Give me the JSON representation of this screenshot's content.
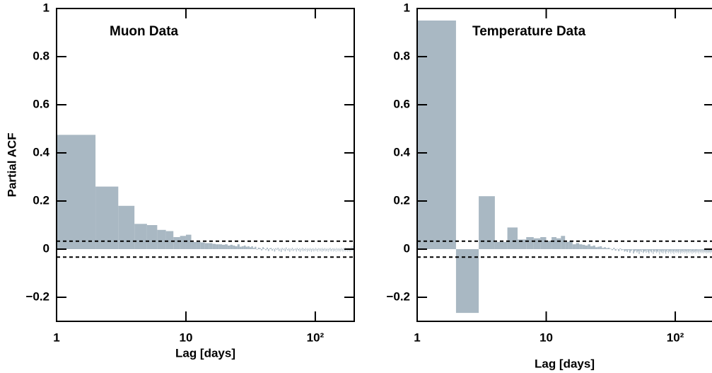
{
  "chart_data": [
    {
      "type": "histogram",
      "title": "Muon Data",
      "x_label": "Lag [days]",
      "y_label": "Partial ACF",
      "x_scale": "log",
      "color": "#a9b8c3",
      "xlim": [
        1,
        200
      ],
      "xticks": [
        1,
        10,
        {
          "value": 100,
          "label": "10²"
        }
      ],
      "ylim": [
        -0.3,
        1
      ],
      "yticks": [
        {
          "value": -0.2,
          "label": "−0.2"
        },
        0,
        0.2,
        0.4,
        0.6,
        0.8,
        1
      ],
      "confidence_bounds": [
        0.033,
        -0.033
      ],
      "bins": [
        1,
        2,
        3,
        4,
        5,
        6,
        7,
        8,
        9,
        10,
        11,
        12,
        13,
        14,
        15,
        16,
        17,
        18,
        19,
        20,
        21,
        22,
        23,
        24,
        25,
        26,
        27,
        28,
        29,
        30,
        31,
        32,
        33,
        34,
        35,
        36,
        37,
        38,
        39,
        40,
        41,
        42,
        43,
        44,
        45,
        46,
        47,
        48,
        49,
        50,
        51,
        52,
        53,
        54,
        55,
        56,
        57,
        58,
        59,
        60,
        61,
        62,
        63,
        64,
        65,
        66,
        67,
        68,
        69,
        70,
        71,
        72,
        73,
        74,
        75,
        76,
        77,
        78,
        79,
        80,
        81,
        82,
        83,
        84,
        85,
        86,
        87,
        88,
        89,
        90,
        91,
        92,
        93,
        94,
        95,
        96,
        97,
        98,
        99,
        100,
        101,
        102,
        103,
        104,
        105,
        106,
        107,
        108,
        109,
        110,
        111,
        112,
        113,
        114,
        115,
        116,
        117,
        118,
        119,
        120,
        121,
        122,
        123,
        124,
        125,
        126,
        127,
        128,
        129,
        130,
        131,
        132,
        133,
        134,
        135,
        136,
        137,
        138,
        139,
        140,
        141,
        142,
        143,
        144,
        145,
        146,
        147,
        148,
        149,
        150,
        151,
        152,
        153,
        154,
        155,
        156,
        157,
        158,
        159,
        160,
        161,
        162,
        163,
        164,
        165,
        166,
        167,
        168,
        169,
        170,
        171,
        172,
        173,
        174,
        175,
        176,
        177,
        178,
        179,
        180,
        181,
        182,
        183,
        184,
        185,
        186,
        187,
        188,
        189,
        190,
        191,
        192,
        193,
        194,
        195,
        196,
        197,
        198,
        199,
        200
      ],
      "values": [
        0.475,
        0.26,
        0.18,
        0.105,
        0.1,
        0.08,
        0.075,
        0.05,
        0.055,
        0.06,
        0.03,
        0.03,
        0.028,
        0.025,
        0.025,
        0.022,
        0.02,
        0.02,
        0.018,
        0.02,
        0.015,
        0.018,
        0.015,
        0.012,
        0.02,
        0.01,
        0.012,
        0.015,
        0.01,
        0.012,
        0.008,
        0.012,
        0.005,
        0.01,
        -0.002,
        0.006,
        0.004,
        -0.005,
        0.008,
        0.002,
        -0.004,
        0.006,
        -0.008,
        0.003,
        0.005,
        -0.006,
        0.002,
        -0.01,
        0.004,
        -0.003,
        0.006,
        -0.008,
        0.002,
        -0.012,
        0.005,
        -0.004,
        0.003,
        -0.009,
        0.007,
        -0.002,
        -0.006,
        0.004,
        -0.011,
        0.002,
        -0.005,
        0.006,
        -0.008,
        0.001,
        -0.004,
        0.003,
        -0.01,
        0.005,
        -0.003,
        -0.007,
        0.004,
        -0.012,
        0.002,
        -0.005,
        0.006,
        -0.009,
        0.003,
        -0.004,
        -0.008,
        0.005,
        -0.002,
        -0.011,
        0.004,
        -0.006,
        0.002,
        -0.009,
        0.005,
        -0.003,
        -0.012,
        0.003,
        -0.006,
        0.004,
        -0.01,
        0.001,
        -0.005,
        0.006,
        -0.008,
        0.002,
        -0.004,
        -0.011,
        0.005,
        -0.003,
        0.003,
        -0.009,
        0.004,
        -0.006,
        0.002,
        -0.012,
        0.006,
        -0.004,
        -0.008,
        0.003,
        -0.005,
        0.005,
        -0.01,
        0.001,
        -0.006,
        0.004,
        -0.009,
        0.002,
        -0.003,
        -0.012,
        0.005,
        -0.004,
        0.003,
        -0.008,
        0.006,
        -0.005,
        -0.01,
        0.002,
        -0.004,
        0.004,
        -0.011,
        0.003,
        -0.006,
        0.005,
        -0.008,
        0.001,
        -0.004,
        -0.012,
        0.006,
        -0.003,
        0.002,
        -0.009,
        0.004,
        -0.005,
        0.003,
        -0.01,
        0.005,
        -0.006,
        -0.002,
        -0.011,
        0.004,
        -0.004,
        0.006,
        -0.008,
        0.002,
        -0.005,
        -0.012,
        0.004,
        -0.003,
        0.005,
        -0.009,
        0.001,
        -0.006,
        0.008,
        -0.01,
        0.003,
        -0.004,
        -0.008,
        0.006,
        -0.002,
        -0.011,
        0.004,
        -0.005,
        0.007,
        -0.009,
        0.002,
        -0.006,
        0.005,
        -0.012,
        0.003,
        -0.004,
        0.01,
        -0.008,
        0.004,
        -0.005,
        0.012,
        -0.01,
        0.006,
        -0.003,
        0.015,
        -0.008,
        0.01,
        0.018
      ]
    },
    {
      "type": "histogram",
      "title": "Temperature Data",
      "x_label": "Lag [days]",
      "x_scale": "log",
      "color": "#a9b8c3",
      "xlim": [
        1,
        200
      ],
      "xticks": [
        1,
        10,
        {
          "value": 100,
          "label": "10²"
        }
      ],
      "ylim": [
        -0.3,
        1
      ],
      "yticks": [
        {
          "value": -0.2,
          "label": "−0.2"
        },
        0,
        0.2,
        0.4,
        0.6,
        0.8,
        1
      ],
      "confidence_bounds": [
        0.033,
        -0.033
      ],
      "bins": [
        1,
        2,
        3,
        4,
        5,
        6,
        7,
        8,
        9,
        10,
        11,
        12,
        13,
        14,
        15,
        16,
        17,
        18,
        19,
        20,
        21,
        22,
        23,
        24,
        25,
        26,
        27,
        28,
        29,
        30,
        31,
        32,
        33,
        34,
        35,
        36,
        37,
        38,
        39,
        40,
        41,
        42,
        43,
        44,
        45,
        46,
        47,
        48,
        49,
        50,
        51,
        52,
        53,
        54,
        55,
        56,
        57,
        58,
        59,
        60,
        61,
        62,
        63,
        64,
        65,
        66,
        67,
        68,
        69,
        70,
        71,
        72,
        73,
        74,
        75,
        76,
        77,
        78,
        79,
        80,
        81,
        82,
        83,
        84,
        85,
        86,
        87,
        88,
        89,
        90,
        91,
        92,
        93,
        94,
        95,
        96,
        97,
        98,
        99,
        100,
        101,
        102,
        103,
        104,
        105,
        106,
        107,
        108,
        109,
        110,
        111,
        112,
        113,
        114,
        115,
        116,
        117,
        118,
        119,
        120,
        121,
        122,
        123,
        124,
        125,
        126,
        127,
        128,
        129,
        130,
        131,
        132,
        133,
        134,
        135,
        136,
        137,
        138,
        139,
        140,
        141,
        142,
        143,
        144,
        145,
        146,
        147,
        148,
        149,
        150,
        151,
        152,
        153,
        154,
        155,
        156,
        157,
        158,
        159,
        160,
        161,
        162,
        163,
        164,
        165,
        166,
        167,
        168,
        169,
        170,
        171,
        172,
        173,
        174,
        175,
        176,
        177,
        178,
        179,
        180,
        181,
        182,
        183,
        184,
        185,
        186,
        187,
        188,
        189,
        190,
        191,
        192,
        193,
        194,
        195,
        196,
        197,
        198,
        199,
        200
      ],
      "values": [
        0.95,
        -0.265,
        0.22,
        0.03,
        0.09,
        0.04,
        0.05,
        0.045,
        0.05,
        0.035,
        0.05,
        0.045,
        0.055,
        0.03,
        0.035,
        0.02,
        0.025,
        0.02,
        0.018,
        0.015,
        0.02,
        0.012,
        0.015,
        0.008,
        0.01,
        0.012,
        0.005,
        0.008,
        0.004,
        0.006,
        0.002,
        -0.004,
        0.005,
        -0.006,
        0.001,
        -0.008,
        0.003,
        -0.005,
        -0.002,
        -0.01,
        -0.006,
        -0.012,
        -0.004,
        -0.015,
        -0.008,
        -0.002,
        -0.018,
        -0.01,
        -0.005,
        -0.014,
        -0.008,
        -0.02,
        -0.006,
        -0.012,
        -0.003,
        -0.016,
        -0.01,
        -0.007,
        -0.015,
        -0.004,
        -0.012,
        -0.018,
        -0.006,
        -0.01,
        -0.014,
        -0.003,
        -0.02,
        -0.008,
        -0.012,
        -0.005,
        -0.016,
        -0.009,
        -0.013,
        -0.004,
        -0.022,
        -0.007,
        -0.011,
        -0.015,
        -0.006,
        -0.018,
        -0.01,
        -0.004,
        -0.014,
        -0.02,
        -0.008,
        -0.012,
        -0.003,
        -0.017,
        -0.009,
        -0.013,
        -0.006,
        -0.019,
        -0.011,
        -0.005,
        -0.015,
        -0.008,
        -0.021,
        -0.01,
        -0.004,
        -0.014,
        -0.009,
        -0.016,
        -0.006,
        -0.012,
        -0.018,
        -0.007,
        -0.013,
        -0.003,
        -0.02,
        -0.01,
        -0.014,
        -0.006,
        -0.017,
        -0.009,
        -0.012,
        -0.004,
        -0.019,
        -0.011,
        -0.007,
        -0.015,
        -0.008,
        -0.022,
        -0.01,
        -0.005,
        -0.016,
        -0.012,
        -0.006,
        -0.018,
        -0.009,
        -0.013,
        -0.004,
        -0.017,
        -0.011,
        -0.007,
        -0.02,
        -0.009,
        -0.014,
        -0.005,
        -0.016,
        -0.01,
        -0.012,
        -0.006,
        -0.019,
        -0.008,
        -0.013,
        -0.004,
        -0.017,
        -0.011,
        -0.007,
        -0.015,
        -0.009,
        -0.021,
        -0.01,
        -0.006,
        -0.014,
        -0.012,
        -0.005,
        -0.018,
        -0.008,
        -0.013,
        -0.006,
        -0.016,
        -0.011,
        -0.004,
        -0.019,
        -0.009,
        -0.014,
        -0.007,
        -0.012,
        -0.017,
        -0.008,
        -0.013,
        -0.005,
        -0.02,
        -0.01,
        -0.006,
        -0.015,
        -0.011,
        -0.004,
        -0.018,
        -0.009,
        -0.014,
        -0.007,
        -0.012,
        -0.016,
        -0.005,
        -0.019,
        -0.01,
        -0.008,
        -0.013,
        -0.006,
        -0.015,
        -0.011,
        -0.004,
        -0.017,
        -0.009,
        -0.012,
        -0.007,
        -0.014
      ]
    }
  ]
}
